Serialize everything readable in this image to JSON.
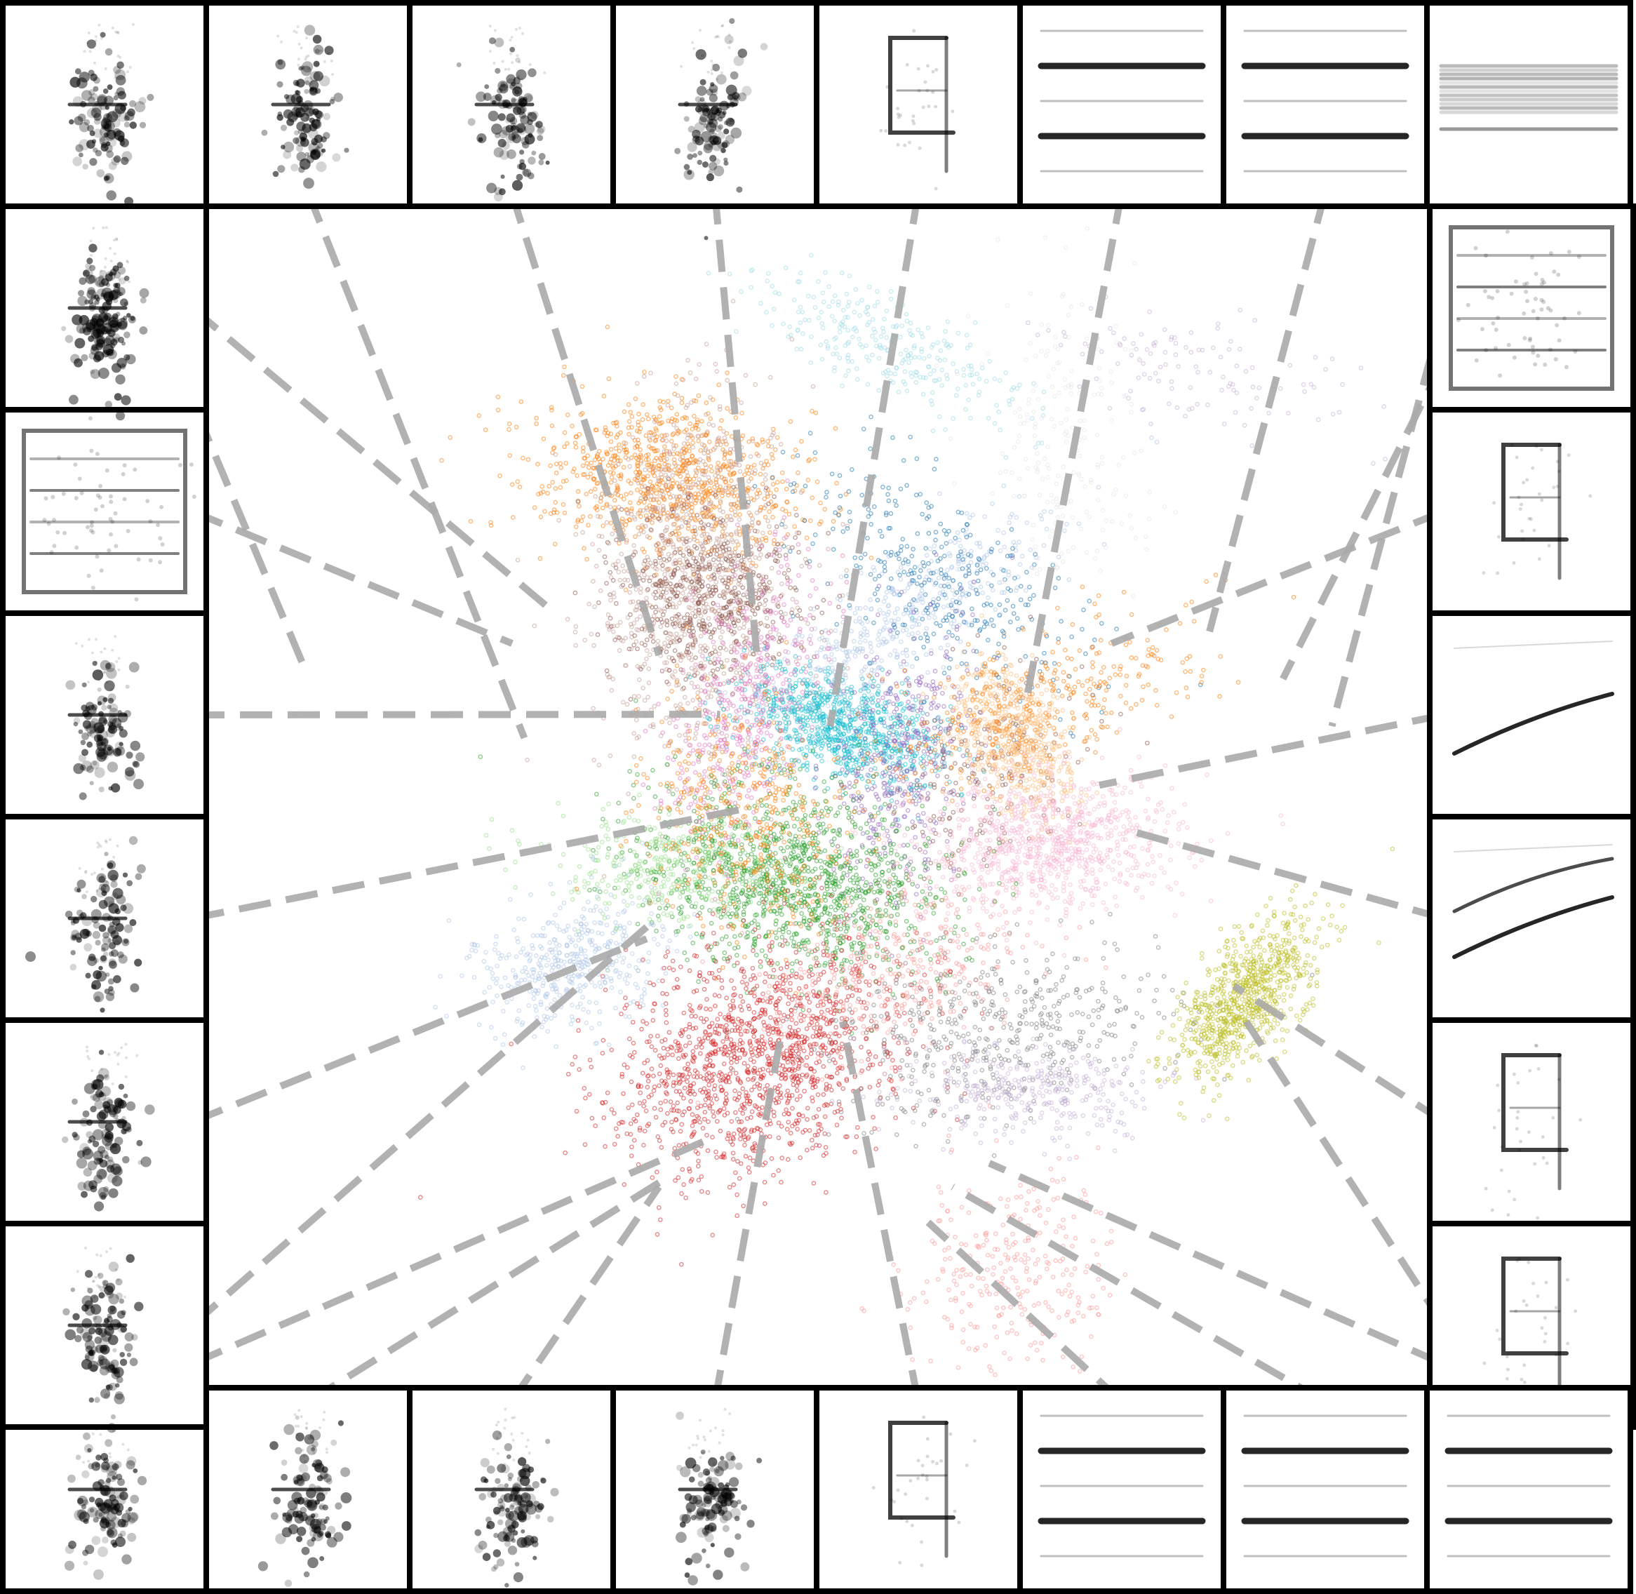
{
  "chart_data": {
    "type": "scatter",
    "title": "",
    "xlabel": "",
    "ylabel": "",
    "xlim": [
      0,
      1
    ],
    "ylim": [
      0,
      1
    ],
    "grid": false,
    "legend": "none",
    "has_tick_labels": false,
    "clusters": [
      {
        "color": "#ff7f0e",
        "x": 0.38,
        "y": 0.77,
        "n": 900
      },
      {
        "color": "#c49c94",
        "x": 0.4,
        "y": 0.68,
        "n": 1100
      },
      {
        "color": "#8c564b",
        "x": 0.41,
        "y": 0.67,
        "n": 500
      },
      {
        "color": "#9edae5",
        "x": 0.56,
        "y": 0.88,
        "n": 300
      },
      {
        "color": "#17becf",
        "x": 0.52,
        "y": 0.56,
        "n": 900
      },
      {
        "color": "#aec7e8",
        "x": 0.57,
        "y": 0.65,
        "n": 450
      },
      {
        "color": "#1f77b4",
        "x": 0.6,
        "y": 0.68,
        "n": 350
      },
      {
        "color": "#9467bd",
        "x": 0.57,
        "y": 0.53,
        "n": 450
      },
      {
        "color": "#8c564b",
        "x": 0.63,
        "y": 0.51,
        "n": 200
      },
      {
        "color": "#ffbb78",
        "x": 0.66,
        "y": 0.55,
        "n": 600
      },
      {
        "color": "#ff7f0e",
        "x": 0.68,
        "y": 0.58,
        "n": 350
      },
      {
        "color": "#f7b6d2",
        "x": 0.69,
        "y": 0.46,
        "n": 900
      },
      {
        "color": "#e377c2",
        "x": 0.44,
        "y": 0.58,
        "n": 450
      },
      {
        "color": "#2ca02c",
        "x": 0.48,
        "y": 0.43,
        "n": 1300
      },
      {
        "color": "#98df8a",
        "x": 0.38,
        "y": 0.44,
        "n": 350
      },
      {
        "color": "#ff7f0e",
        "x": 0.44,
        "y": 0.48,
        "n": 450
      },
      {
        "color": "#d62728",
        "x": 0.45,
        "y": 0.28,
        "n": 1400
      },
      {
        "color": "#ff9896",
        "x": 0.56,
        "y": 0.35,
        "n": 400
      },
      {
        "color": "#aec7e8",
        "x": 0.3,
        "y": 0.36,
        "n": 450
      },
      {
        "color": "#7f7f7f",
        "x": 0.65,
        "y": 0.3,
        "n": 500
      },
      {
        "color": "#c5b0d5",
        "x": 0.67,
        "y": 0.25,
        "n": 350
      },
      {
        "color": "#bcbd22",
        "x": 0.85,
        "y": 0.33,
        "n": 800
      },
      {
        "color": "#ff9896",
        "x": 0.66,
        "y": 0.1,
        "n": 300
      },
      {
        "color": "#c5b0d5",
        "x": 0.81,
        "y": 0.86,
        "n": 120
      },
      {
        "color": "#e6e6e6",
        "x": 0.7,
        "y": 0.8,
        "n": 220
      }
    ],
    "inset_images": [
      {
        "position": "top-1",
        "pattern": "vertical-blob",
        "line_end": [
          0.08,
          0.61
        ]
      },
      {
        "position": "top-2",
        "pattern": "vertical-blob",
        "line_end": [
          0.26,
          0.55
        ]
      },
      {
        "position": "top-3",
        "pattern": "vertical-blob",
        "line_end": [
          0.37,
          0.62
        ]
      },
      {
        "position": "top-4",
        "pattern": "vertical-blob",
        "line_end": [
          0.45,
          0.62
        ]
      },
      {
        "position": "top-5",
        "pattern": "bracket",
        "line_end": [
          0.51,
          0.56
        ]
      },
      {
        "position": "top-6",
        "pattern": "horizontal-lines",
        "line_end": [
          0.67,
          0.58
        ]
      },
      {
        "position": "top-7",
        "pattern": "horizontal-lines",
        "line_end": [
          0.82,
          0.64
        ]
      },
      {
        "position": "top-8",
        "pattern": "horizontal-band",
        "line_end": [
          0.88,
          0.6
        ]
      },
      {
        "position": "right-1",
        "pattern": "box",
        "line_end": [
          0.92,
          0.56
        ]
      },
      {
        "position": "right-2",
        "pattern": "bracket",
        "line_end": [
          0.74,
          0.63
        ]
      },
      {
        "position": "right-3",
        "pattern": "rising-curve",
        "line_end": [
          0.73,
          0.51
        ]
      },
      {
        "position": "right-4",
        "pattern": "rising-curves",
        "line_end": [
          0.76,
          0.47
        ]
      },
      {
        "position": "right-5",
        "pattern": "bracket",
        "line_end": [
          0.84,
          0.34
        ]
      },
      {
        "position": "right-6",
        "pattern": "bracket",
        "line_end": [
          0.85,
          0.31
        ]
      },
      {
        "position": "bottom-8",
        "pattern": "horizontal-lines",
        "line_end": [
          0.64,
          0.19
        ]
      },
      {
        "position": "bottom-7",
        "pattern": "horizontal-lines",
        "line_end": [
          0.61,
          0.17
        ]
      },
      {
        "position": "bottom-6",
        "pattern": "horizontal-lines",
        "line_end": [
          0.59,
          0.14
        ]
      },
      {
        "position": "bottom-5",
        "pattern": "bracket",
        "line_end": [
          0.52,
          0.31
        ]
      },
      {
        "position": "bottom-4",
        "pattern": "vertical-blob",
        "line_end": [
          0.47,
          0.3
        ]
      },
      {
        "position": "bottom-3",
        "pattern": "vertical-blob",
        "line_end": [
          0.37,
          0.17
        ]
      },
      {
        "position": "bottom-2",
        "pattern": "vertical-blob",
        "line_end": [
          0.38,
          0.18
        ]
      },
      {
        "position": "bottom-1",
        "pattern": "vertical-blob",
        "line_end": [
          0.41,
          0.21
        ]
      },
      {
        "position": "left-6",
        "pattern": "vertical-blob",
        "line_end": [
          0.36,
          0.39
        ]
      },
      {
        "position": "left-5",
        "pattern": "vertical-blob",
        "line_end": [
          0.36,
          0.38
        ]
      },
      {
        "position": "left-4",
        "pattern": "vertical-blob",
        "line_end": [
          0.44,
          0.49
        ]
      },
      {
        "position": "left-3",
        "pattern": "vertical-blob",
        "line_end": [
          0.42,
          0.57
        ]
      },
      {
        "position": "left-2",
        "pattern": "box",
        "line_end": [
          0.25,
          0.63
        ]
      },
      {
        "position": "left-1",
        "pattern": "dense-blob",
        "line_end": [
          0.28,
          0.66
        ]
      }
    ]
  }
}
